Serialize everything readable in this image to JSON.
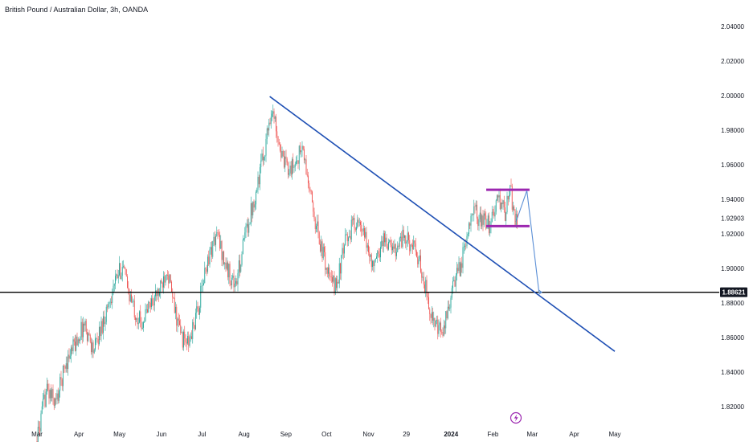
{
  "header": {
    "title": "British Pound / Australian Dollar, 3h, OANDA"
  },
  "colors": {
    "up": "#26a69a",
    "down": "#ef5350",
    "trendline": "#1e4fb4",
    "range_box": "#9c27b0",
    "projection": "#5b8fd6",
    "support_line": "#000000",
    "price_tag_bg": "#131722"
  },
  "chart_data": {
    "type": "candlestick",
    "title": "British Pound / Australian Dollar, 3h, OANDA",
    "symbol": "GBPAUD",
    "interval": "3h",
    "source": "OANDA",
    "ylim": [
      1.806,
      2.052
    ],
    "xlim": [
      "2023-03-01",
      "2024-05-20"
    ],
    "y_ticks": [
      "2.04000",
      "2.02000",
      "2.00000",
      "1.98000",
      "1.96000",
      "1.94000",
      "1.92903",
      "1.92000",
      "1.90000",
      "1.88621",
      "1.88000",
      "1.86000",
      "1.84000",
      "1.82000"
    ],
    "x_ticks": [
      {
        "label": "Mar",
        "date": "2023-03-01"
      },
      {
        "label": "Apr",
        "date": "2023-04-01"
      },
      {
        "label": "May",
        "date": "2023-05-01"
      },
      {
        "label": "Jun",
        "date": "2023-06-01"
      },
      {
        "label": "Jul",
        "date": "2023-07-01"
      },
      {
        "label": "Aug",
        "date": "2023-08-01"
      },
      {
        "label": "Sep",
        "date": "2023-09-01"
      },
      {
        "label": "Oct",
        "date": "2023-10-01"
      },
      {
        "label": "Nov",
        "date": "2023-11-01"
      },
      {
        "label": "29",
        "date": "2023-11-29"
      },
      {
        "label": "2024",
        "date": "2024-01-01",
        "bold": true
      },
      {
        "label": "Feb",
        "date": "2024-02-01"
      },
      {
        "label": "Mar",
        "date": "2024-03-01"
      },
      {
        "label": "Apr",
        "date": "2024-04-01"
      },
      {
        "label": "May",
        "date": "2024-05-01"
      }
    ],
    "price_path": [
      [
        "2023-03-01",
        1.8
      ],
      [
        "2023-03-08",
        1.83
      ],
      [
        "2023-03-15",
        1.822
      ],
      [
        "2023-03-22",
        1.845
      ],
      [
        "2023-03-29",
        1.856
      ],
      [
        "2023-04-05",
        1.868
      ],
      [
        "2023-04-12",
        1.852
      ],
      [
        "2023-04-19",
        1.87
      ],
      [
        "2023-04-26",
        1.888
      ],
      [
        "2023-05-03",
        1.902
      ],
      [
        "2023-05-10",
        1.88
      ],
      [
        "2023-05-17",
        1.868
      ],
      [
        "2023-05-24",
        1.88
      ],
      [
        "2023-05-31",
        1.887
      ],
      [
        "2023-06-05",
        1.902
      ],
      [
        "2023-06-10",
        1.878
      ],
      [
        "2023-06-16",
        1.86
      ],
      [
        "2023-06-21",
        1.856
      ],
      [
        "2023-06-28",
        1.876
      ],
      [
        "2023-07-05",
        1.905
      ],
      [
        "2023-07-12",
        1.92
      ],
      [
        "2023-07-19",
        1.9
      ],
      [
        "2023-07-26",
        1.89
      ],
      [
        "2023-08-02",
        1.92
      ],
      [
        "2023-08-09",
        1.942
      ],
      [
        "2023-08-16",
        1.968
      ],
      [
        "2023-08-21",
        1.992
      ],
      [
        "2023-08-25",
        1.982
      ],
      [
        "2023-08-30",
        1.96
      ],
      [
        "2023-09-06",
        1.958
      ],
      [
        "2023-09-13",
        1.97
      ],
      [
        "2023-09-20",
        1.938
      ],
      [
        "2023-09-27",
        1.912
      ],
      [
        "2023-10-04",
        1.892
      ],
      [
        "2023-10-08",
        1.89
      ],
      [
        "2023-10-15",
        1.915
      ],
      [
        "2023-10-22",
        1.928
      ],
      [
        "2023-10-29",
        1.918
      ],
      [
        "2023-11-05",
        1.9
      ],
      [
        "2023-11-12",
        1.918
      ],
      [
        "2023-11-19",
        1.91
      ],
      [
        "2023-11-26",
        1.918
      ],
      [
        "2023-12-03",
        1.914
      ],
      [
        "2023-12-10",
        1.9
      ],
      [
        "2023-12-15",
        1.882
      ],
      [
        "2023-12-20",
        1.866
      ],
      [
        "2023-12-26",
        1.862
      ],
      [
        "2024-01-01",
        1.885
      ],
      [
        "2024-01-08",
        1.902
      ],
      [
        "2024-01-12",
        1.914
      ],
      [
        "2024-01-16",
        1.936
      ],
      [
        "2024-01-22",
        1.928
      ],
      [
        "2024-01-29",
        1.925
      ],
      [
        "2024-02-05",
        1.94
      ],
      [
        "2024-02-10",
        1.932
      ],
      [
        "2024-02-14",
        1.945
      ],
      [
        "2024-02-17",
        1.929
      ],
      [
        "2024-02-19",
        1.928
      ]
    ],
    "annotations": {
      "trendline": {
        "start": [
          "2023-08-20",
          1.9995
        ],
        "end": [
          "2024-05-01",
          1.852
        ]
      },
      "horizontal_support": 1.88621,
      "range_top": {
        "start": [
          "2024-01-27",
          1.9455
        ],
        "end": [
          "2024-02-28",
          1.9455
        ]
      },
      "range_bottom": {
        "start": [
          "2024-01-27",
          1.9245
        ],
        "end": [
          "2024-02-28",
          1.9245
        ]
      },
      "projection_path": [
        [
          "2024-02-18",
          1.927
        ],
        [
          "2024-02-26",
          1.945
        ],
        [
          "2024-03-06",
          1.8862
        ],
        [
          "2024-03-08",
          1.8862
        ]
      ]
    },
    "current_price": "1.88621",
    "grid": false
  }
}
